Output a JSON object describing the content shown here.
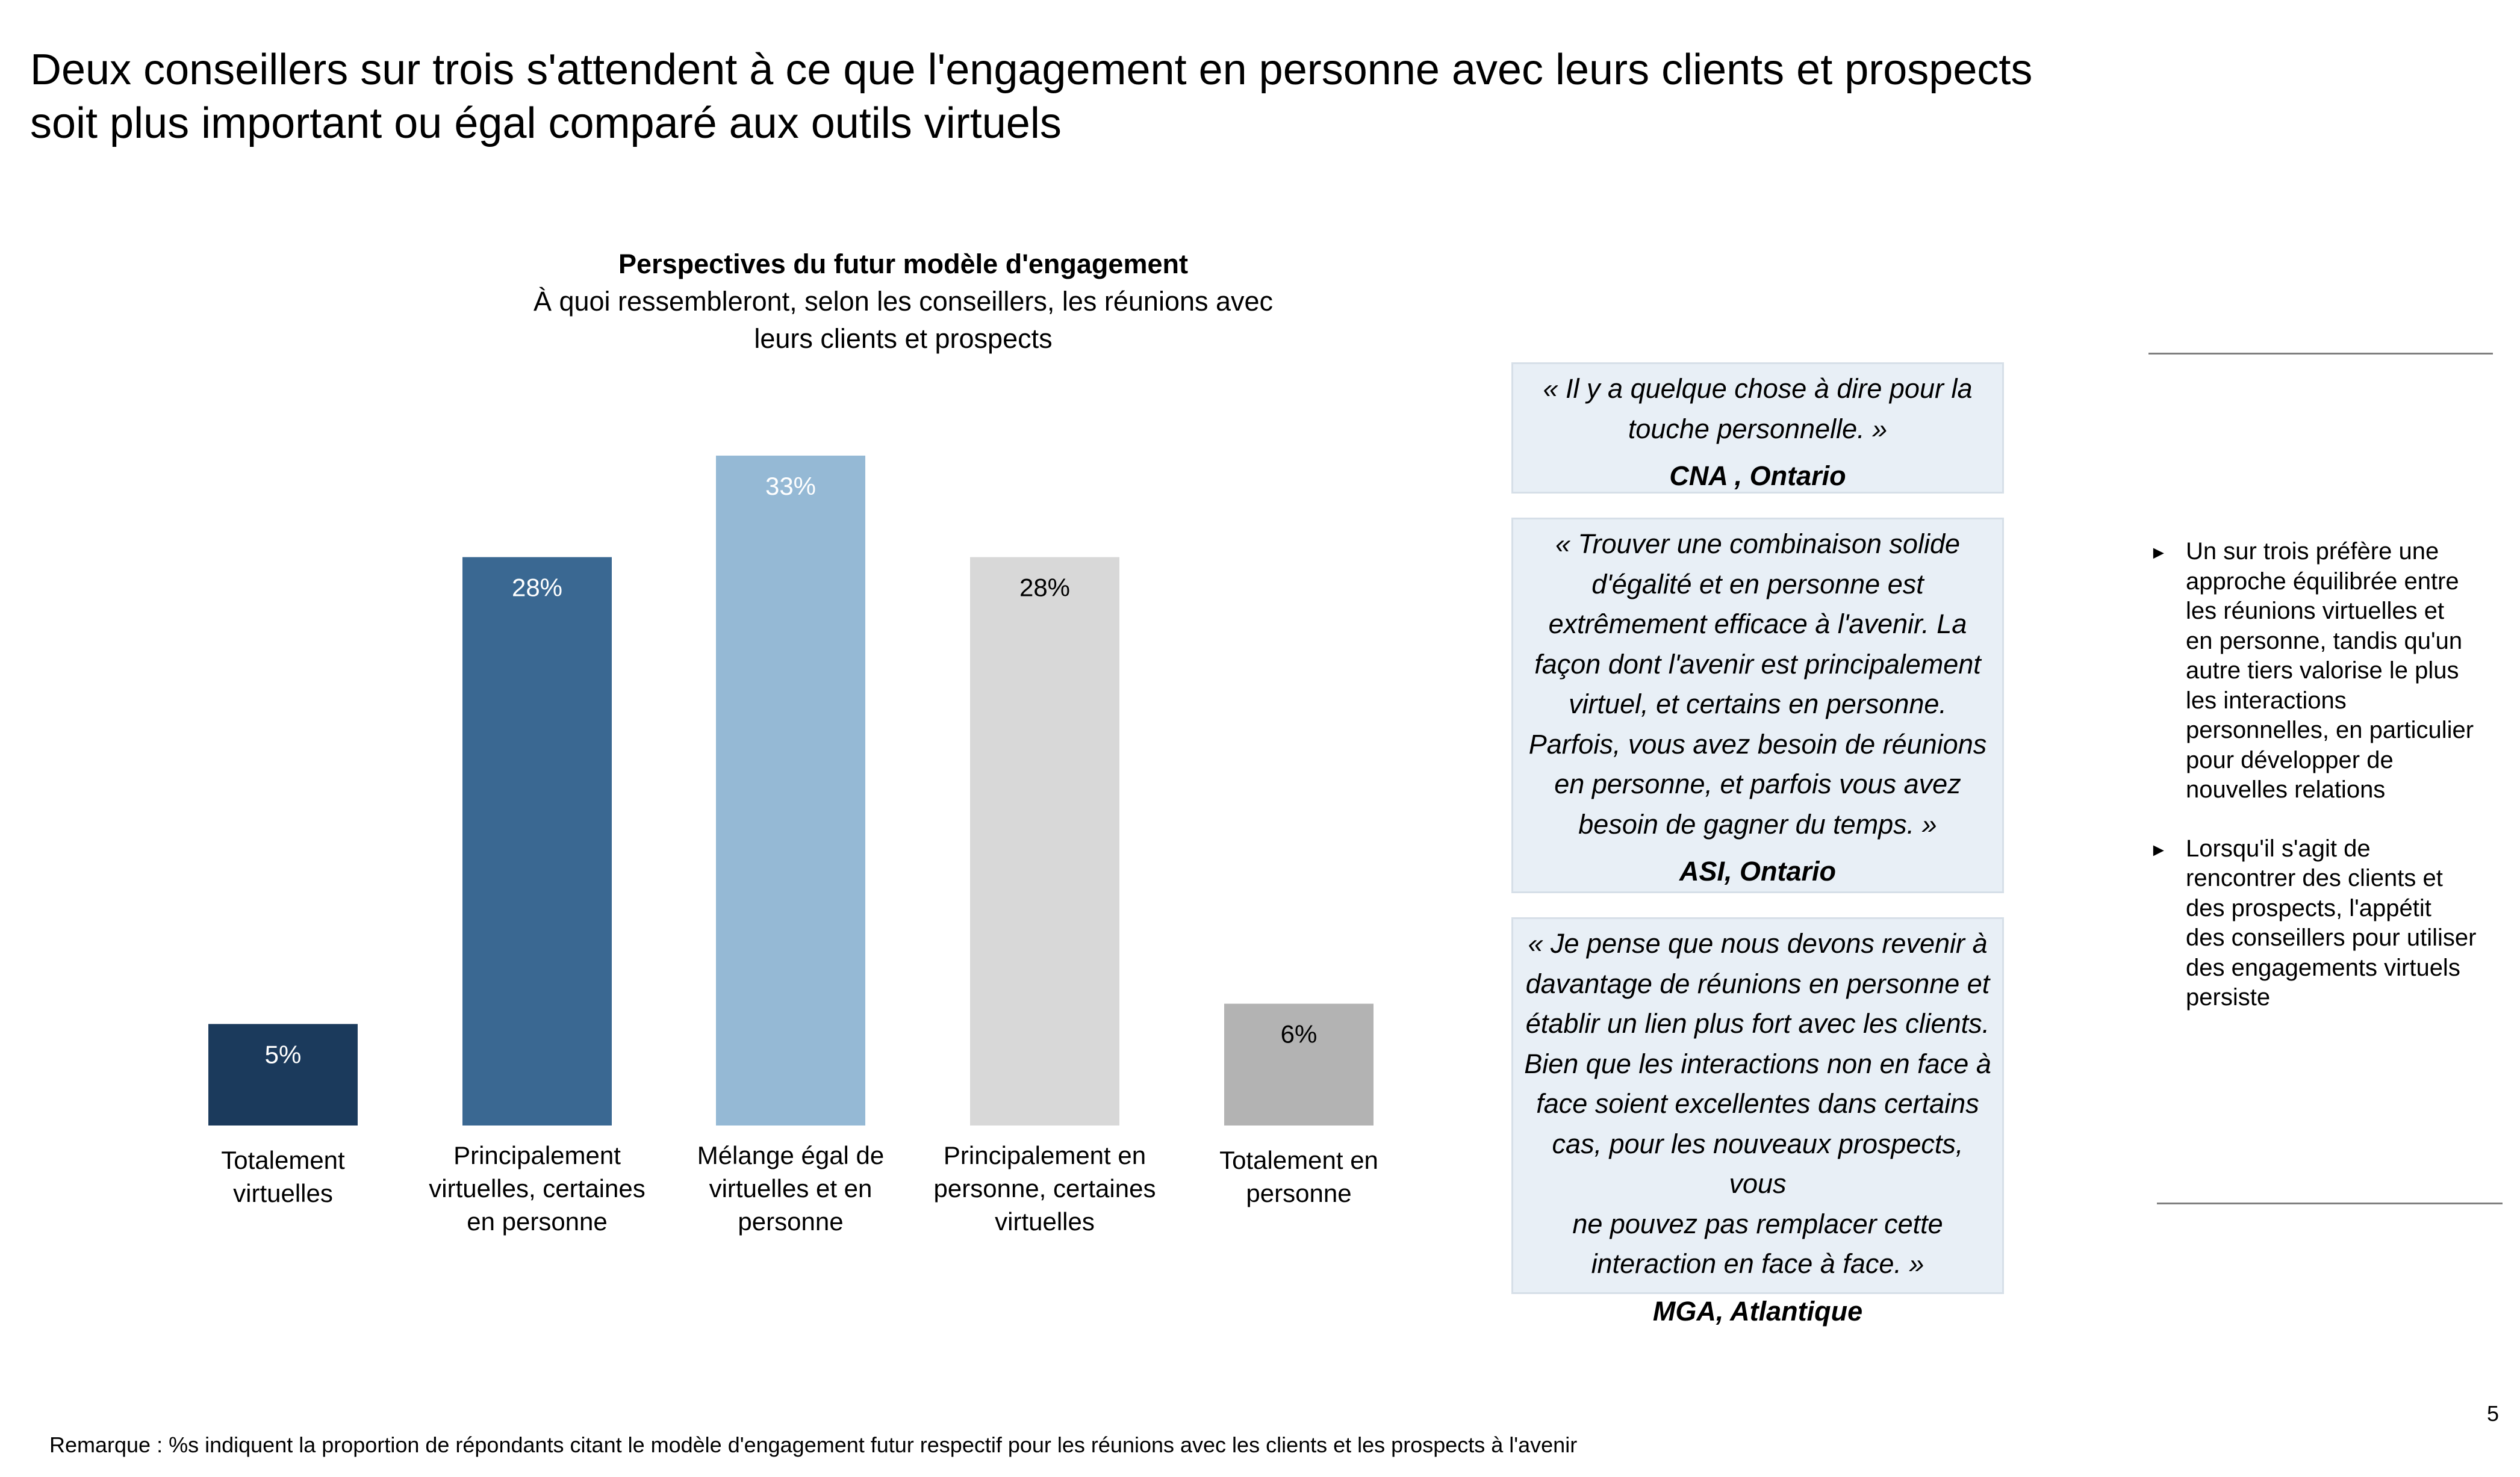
{
  "title": {
    "line1": "Deux conseillers sur trois s'attendent à ce que l'engagement en personne avec leurs clients et prospects",
    "line2": "soit plus important ou égal comparé aux outils virtuels"
  },
  "chart_data": {
    "type": "bar",
    "title": "Perspectives du futur modèle d'engagement",
    "subtitle_line1": "À quoi ressembleront, selon les conseillers, les réunions avec",
    "subtitle_line2": "leurs clients et prospects",
    "categories": [
      [
        "Totalement",
        "virtuelles"
      ],
      [
        "Principalement",
        "virtuelles, certaines",
        "en personne"
      ],
      [
        "Mélange égal de",
        "virtuelles et en",
        "personne"
      ],
      [
        "Principalement en",
        "personne, certaines",
        "virtuelles"
      ],
      [
        "Totalement en",
        "personne"
      ]
    ],
    "values": [
      5,
      28,
      33,
      28,
      6
    ],
    "value_labels": [
      "5%",
      "28%",
      "33%",
      "28%",
      "6%"
    ],
    "colors": [
      "#1b3a5c",
      "#3a6892",
      "#95b9d5",
      "#d8d8d8",
      "#b3b3b3"
    ],
    "label_colors": [
      "#ffffff",
      "#ffffff",
      "#ffffff",
      "#000000",
      "#000000"
    ],
    "ylim": [
      0,
      33
    ],
    "grid": false,
    "legend": "none"
  },
  "quotes": [
    {
      "lines": [
        "« Il y a quelque chose à dire pour la",
        "touche personnelle. »"
      ],
      "source": "CNA , Ontario"
    },
    {
      "lines": [
        "« Trouver une combinaison solide",
        "d'égalité et en personne est",
        "extrêmement efficace à l'avenir. La",
        "façon dont l'avenir est principalement",
        "virtuel, et certains en personne.",
        "Parfois, vous avez besoin de réunions",
        "en personne, et parfois vous avez",
        "besoin de gagner du temps. »"
      ],
      "source": "ASI, Ontario"
    },
    {
      "lines": [
        "« Je pense que nous devons revenir à",
        "davantage de réunions en personne et",
        "établir un lien plus fort avec les clients.",
        "Bien que les interactions non en face à",
        "face soient excellentes dans certains",
        "cas, pour les nouveaux prospects, vous",
        "ne pouvez pas remplacer cette",
        "interaction en face à face. »"
      ],
      "source": "MGA, Atlantique"
    }
  ],
  "takeaways": {
    "bullet_icon": "►",
    "items": [
      [
        "Un sur trois préfère une",
        "approche équilibrée entre",
        "les réunions virtuelles et",
        "en personne, tandis qu'un",
        "autre tiers valorise le plus",
        "les interactions",
        "personnelles, en particulier",
        "pour développer de",
        "nouvelles relations"
      ],
      [
        "Lorsqu'il s'agit de",
        "rencontrer des clients et",
        "des prospects, l'appétit",
        "des conseillers pour utiliser",
        "des engagements virtuels",
        "persiste"
      ]
    ]
  },
  "page_number": "5",
  "footnote": "Remarque : %s indiquent la proportion de répondants citant le modèle d'engagement futur respectif pour les réunions avec les clients et les prospects à l'avenir"
}
